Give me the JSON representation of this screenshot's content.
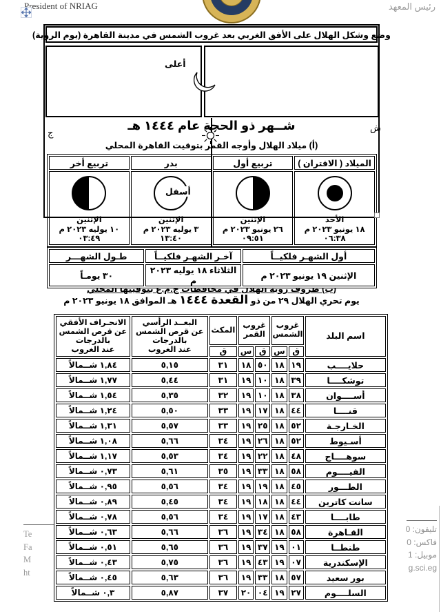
{
  "header": {
    "president_en": "President of NRIAG",
    "president_ar": "رئيس المعهد"
  },
  "diagram": {
    "title": "وضع وشكل الهلال على الأفق الغربي بعد غروب الشمس في مدينة القاهرة (يوم الرؤية)",
    "up_label": "أعلى",
    "down_label": "أسفل",
    "right_horizon_label": "ش",
    "left_horizon_label": "ج",
    "month_title": "شــهر ذو الحجة عام ١٤٤٤ هـ"
  },
  "section_a": {
    "heading": "(أ) ميلاد الهلال وأوجه القمر بتوقيت القاهرة المحلي",
    "phases": [
      {
        "label": "الميلاد ( الاقتران )",
        "symbol": "new-moon",
        "day": "الأحد",
        "date": "١٨ يونيو ٢٠٢٣ م",
        "time": "٠٦:٣٨"
      },
      {
        "label": "تربيع أول",
        "symbol": "first-quarter",
        "day": "الإثنين",
        "date": "٢٦ يونيو ٢٠٢٣ م",
        "time": "٠٩:٥١"
      },
      {
        "label": "بدر",
        "symbol": "full-moon",
        "day": "الإثنين",
        "date": "٣ يوليه ٢٠٢٣ م",
        "time": "١٣:٤٠"
      },
      {
        "label": "تربيع أخر",
        "symbol": "last-quarter",
        "day": "الإثنين",
        "date": "١٠ يوليه ٢٠٢٣ م",
        "time": "٠٣:٤٩"
      }
    ],
    "month_bounds": [
      {
        "label": "أول الشهـر فلكيــاً",
        "value": "الإثنين ١٩ يونيو ٢٠٢٣ م"
      },
      {
        "label": "آخـر الشهـر فلكيــاً",
        "value": "الثلاثاء ١٨ يوليه ٢٠٢٣ م"
      },
      {
        "label": "طـول الشهـــر",
        "value": "٣٠ يومـاً"
      }
    ]
  },
  "section_b": {
    "heading": "(ب) ظروف رؤية الهلال في محافظات ج.م.ع بتوقيتها المحلي",
    "survey_prefix": "يوم تحري الهلال ٢٩ من ذو ",
    "survey_big": "القعدة ١٤٤٤",
    "survey_suffix": " هـ الموافق ١٨ يونيو ٢٠٢٣ م"
  },
  "main_table": {
    "headers": {
      "city": "اسم البلد",
      "sunset": "غروب الشمس",
      "moonset": "غروب القمر",
      "lag": "المكث",
      "hours_abbr": "س",
      "minutes_abbr": "ق",
      "vertical_lines": [
        "البعــد الرأسي",
        "عن قرص الشمس",
        "بالدرجات",
        "عند الغروب"
      ],
      "horizontal_lines": [
        "الانحـراف الأفقي",
        "عن قرص الشمس",
        "بالدرجات",
        "عند الغروب"
      ]
    },
    "rows": [
      {
        "city": "حلايــــب",
        "sunset_h": "١٨",
        "sunset_m": "١٩",
        "moonset_h": "١٨",
        "moonset_m": "٥٠",
        "lag": "٣١",
        "vertical": "٥,١٥",
        "horizontal": "١,٨٤ شــمالاً"
      },
      {
        "city": "توشكــــا",
        "sunset_h": "١٨",
        "sunset_m": "٣٩",
        "moonset_h": "١٩",
        "moonset_m": "١٠",
        "lag": "٣١",
        "vertical": "٥,٤٤",
        "horizontal": "١,٧٧ شــمالاً"
      },
      {
        "city": "أســــوان",
        "sunset_h": "١٨",
        "sunset_m": "٣٨",
        "moonset_h": "١٩",
        "moonset_m": "١٠",
        "lag": "٣٢",
        "vertical": "٥,٣٥",
        "horizontal": "١,٥٤ شــمالاً"
      },
      {
        "city": "قنــــا",
        "sunset_h": "١٨",
        "sunset_m": "٤٤",
        "moonset_h": "١٩",
        "moonset_m": "١٧",
        "lag": "٣٣",
        "vertical": "٥,٥٠",
        "horizontal": "١,٢٤ شــمالاً"
      },
      {
        "city": "الخـارجـة",
        "sunset_h": "١٨",
        "sunset_m": "٥٢",
        "moonset_h": "١٩",
        "moonset_m": "٢٥",
        "lag": "٣٣",
        "vertical": "٥,٥٧",
        "horizontal": "١,٣١ شــمالاً"
      },
      {
        "city": "أسـيوط",
        "sunset_h": "١٨",
        "sunset_m": "٥٢",
        "moonset_h": "١٩",
        "moonset_m": "٢٦",
        "lag": "٣٤",
        "vertical": "٥,٦٦",
        "horizontal": "١,٠٨ شــمالاً"
      },
      {
        "city": "سوهــــاج",
        "sunset_h": "١٨",
        "sunset_m": "٤٨",
        "moonset_h": "١٩",
        "moonset_m": "٢٢",
        "lag": "٣٤",
        "vertical": "٥,٥٣",
        "horizontal": "١,١٧ شــمالاً"
      },
      {
        "city": "الفيــــوم",
        "sunset_h": "١٨",
        "sunset_m": "٥٨",
        "moonset_h": "١٩",
        "moonset_m": "٣٣",
        "lag": "٣٥",
        "vertical": "٥,٦١",
        "horizontal": "٠,٧٣ شــمالاً"
      },
      {
        "city": "الطـــور",
        "sunset_h": "١٨",
        "sunset_m": "٤٥",
        "moonset_h": "١٩",
        "moonset_m": "١٩",
        "lag": "٣٤",
        "vertical": "٥,٥٦",
        "horizontal": "٠,٩٥ شــمالاً"
      },
      {
        "city": "سانت كاترين",
        "sunset_h": "١٨",
        "sunset_m": "٤٤",
        "moonset_h": "١٩",
        "moonset_m": "١٨",
        "lag": "٣٤",
        "vertical": "٥,٤٥",
        "horizontal": "٠,٨٩ شــمالاً"
      },
      {
        "city": "طابــــا",
        "sunset_h": "١٨",
        "sunset_m": "٤٣",
        "moonset_h": "١٩",
        "moonset_m": "١٧",
        "lag": "٣٤",
        "vertical": "٥,٥٦",
        "horizontal": "٠,٧٨ شــمالاً"
      },
      {
        "city": "القـاهرة",
        "sunset_h": "١٨",
        "sunset_m": "٥٨",
        "moonset_h": "١٩",
        "moonset_m": "٣٤",
        "lag": "٣٦",
        "vertical": "٥,٦٦",
        "horizontal": "٠,٦٣ شــمالاً"
      },
      {
        "city": "طنطــا",
        "sunset_h": "١٩",
        "sunset_m": "٠١",
        "moonset_h": "١٩",
        "moonset_m": "٣٧",
        "lag": "٣٦",
        "vertical": "٥,٦٥",
        "horizontal": "٠,٥١ شــمالاً"
      },
      {
        "city": "الإسكندرية",
        "sunset_h": "١٩",
        "sunset_m": "٠٧",
        "moonset_h": "١٩",
        "moonset_m": "٤٣",
        "lag": "٣٦",
        "vertical": "٥,٧٥",
        "horizontal": "٠,٤٣ شــمالاً"
      },
      {
        "city": "بور سعيد",
        "sunset_h": "١٨",
        "sunset_m": "٥٧",
        "moonset_h": "١٩",
        "moonset_m": "٣٣",
        "lag": "٣٦",
        "vertical": "٥,٦٣",
        "horizontal": "٠,٤٥ شــمالاً"
      },
      {
        "city": "السلــــوم",
        "sunset_h": "١٩",
        "sunset_m": "٢٧",
        "moonset_h": "٢٠",
        "moonset_m": "٠٤",
        "lag": "٣٧",
        "vertical": "٥,٨٧",
        "horizontal": "٠,٣ شــمالاً"
      }
    ]
  },
  "footer": {
    "left_lines": [
      "Te",
      "Fa",
      "M",
      "ht"
    ],
    "right_lines": [
      "تليفون: 0",
      "فاكس: 0",
      "موبيل: 1",
      "g.sci.eg"
    ]
  },
  "colors": {
    "logo_gold": "#d7b457",
    "logo_navy": "#253c63"
  }
}
